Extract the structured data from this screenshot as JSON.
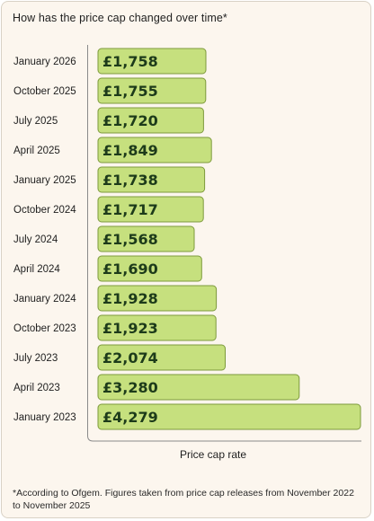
{
  "title": "How has the price cap changed over time*",
  "footnote": "*According to Ofgem. Figures taken from price cap releases from November 2022 to November 2025",
  "colors": {
    "background": "#fcf6ee",
    "bar_fill": "#c6e07e",
    "bar_stroke": "#7d9a3c",
    "label_text": "#1d3b1a",
    "axis": "#8a8a8a"
  },
  "chart_data": {
    "type": "bar",
    "orientation": "horizontal",
    "categories": [
      "January 2026",
      "October 2025",
      "July 2025",
      "April 2025",
      "January 2025",
      "October 2024",
      "July 2024",
      "April 2024",
      "January 2024",
      "October 2023",
      "July 2023",
      "April 2023",
      "January 2023"
    ],
    "values": [
      1758,
      1755,
      1720,
      1849,
      1738,
      1717,
      1568,
      1690,
      1928,
      1923,
      2074,
      3280,
      4279
    ],
    "value_labels": [
      "£1,758",
      "£1,755",
      "£1,720",
      "£1,849",
      "£1,738",
      "£1,717",
      "£1,568",
      "£1,690",
      "£1,928",
      "£1,923",
      "£2,074",
      "£3,280",
      "£4,279"
    ],
    "title": "How has the price cap changed over time*",
    "xlabel": "Price cap rate",
    "ylabel": "",
    "grid": false,
    "legend": "none"
  }
}
